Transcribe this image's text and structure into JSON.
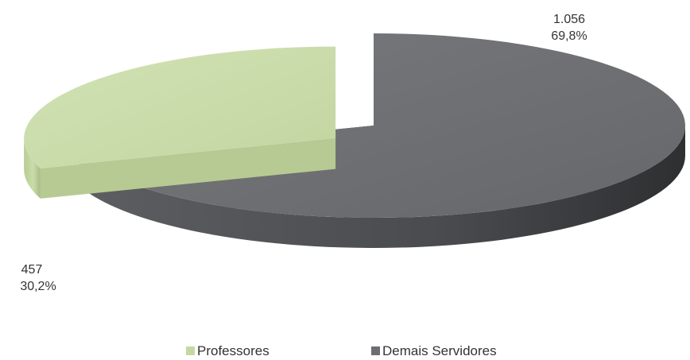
{
  "chart_data": {
    "type": "pie",
    "style": "3d-exploded",
    "title": "",
    "slices": [
      {
        "name": "Professores",
        "value": 457,
        "value_label": "457",
        "percent": 30.2,
        "percent_label": "30,2%",
        "color": "#c5d8a4"
      },
      {
        "name": "Demais Servidores",
        "value": 1056,
        "value_label": "1.056",
        "percent": 69.8,
        "percent_label": "69,8%",
        "color": "#6d6e71"
      }
    ],
    "legend_position": "bottom"
  }
}
